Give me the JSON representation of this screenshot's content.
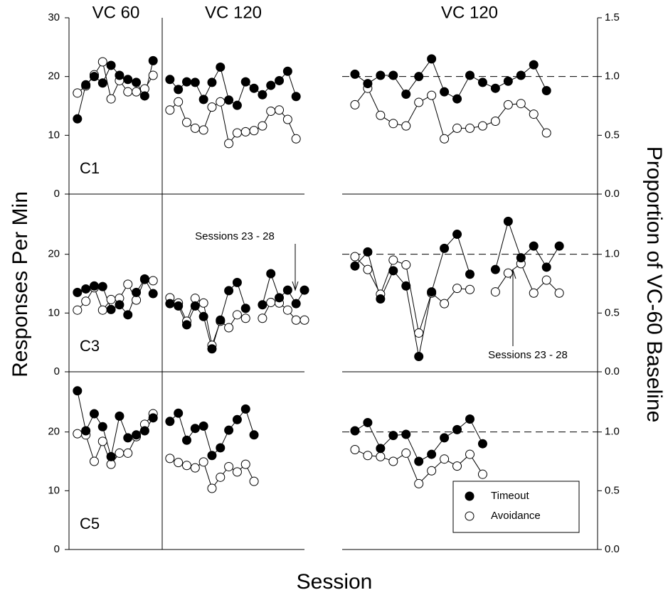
{
  "headers": [
    "VC 60",
    "VC 120",
    "VC 120"
  ],
  "ylabel": "Responses Per Min",
  "y2label": "Proportion of VC-60 Baseline",
  "xlabel": "Session",
  "legend": {
    "position": "lower right",
    "entries": [
      {
        "label": "Timeout",
        "marker": "filled"
      },
      {
        "label": "Avoidance",
        "marker": "open"
      }
    ]
  },
  "chart_data": [
    {
      "type": "line",
      "label": "C1",
      "axis_side": "left",
      "ylim": [
        0,
        30
      ],
      "yticks": [
        0,
        10,
        20,
        30
      ],
      "xlim": [
        0,
        28
      ],
      "x": [
        1,
        2,
        3,
        4,
        5,
        6,
        7,
        8,
        9,
        10,
        11,
        12,
        13,
        14,
        15,
        16,
        17,
        18,
        19,
        20,
        21,
        22,
        23,
        24,
        25,
        26,
        27
      ],
      "series": [
        {
          "marker": "filled",
          "values": [
            12.8,
            18.6,
            20.0,
            18.9,
            21.9,
            20.2,
            19.5,
            19.0,
            16.7,
            22.7,
            null,
            19.5,
            17.8,
            19.1,
            19.0,
            16.1,
            19.0,
            21.6,
            16.0,
            15.1,
            19.1,
            18.0,
            16.9,
            18.5,
            19.3,
            20.9,
            16.6
          ]
        },
        {
          "marker": "open",
          "values": [
            17.2,
            18.4,
            20.3,
            22.5,
            16.2,
            19.3,
            17.4,
            17.4,
            17.9,
            20.2,
            null,
            14.3,
            15.7,
            12.2,
            11.2,
            10.9,
            14.8,
            15.7,
            8.6,
            10.4,
            10.6,
            10.8,
            11.6,
            14.1,
            14.3,
            12.7,
            9.4
          ]
        }
      ]
    },
    {
      "type": "line",
      "axis_side": "right",
      "reference_line": 1,
      "ylim": [
        0,
        1.5
      ],
      "yticks": [
        {
          "value": 0,
          "label": "0.0"
        },
        {
          "value": 0.5,
          "label": "0.5"
        },
        {
          "value": 1,
          "label": "1.0"
        },
        {
          "value": 1.5,
          "label": "1.5"
        }
      ],
      "xlim": [
        0,
        20
      ],
      "x": [
        1,
        2,
        3,
        4,
        5,
        6,
        7,
        8,
        9,
        10,
        11,
        12,
        13,
        14,
        15,
        16
      ],
      "series": [
        {
          "marker": "filled",
          "values": [
            1.02,
            0.94,
            1.01,
            1.01,
            0.85,
            1.0,
            1.15,
            0.87,
            0.81,
            1.01,
            0.95,
            0.9,
            0.96,
            1.01,
            1.1,
            0.88
          ]
        },
        {
          "marker": "open",
          "values": [
            0.76,
            0.9,
            0.67,
            0.6,
            0.58,
            0.78,
            0.84,
            0.47,
            0.56,
            0.56,
            0.58,
            0.62,
            0.76,
            0.77,
            0.68,
            0.52
          ]
        }
      ]
    },
    {
      "type": "line",
      "label": "C3",
      "axis_side": "left",
      "annotation": "Sessions 23 - 28",
      "ylim": [
        0,
        30
      ],
      "yticks": [
        0,
        10,
        20
      ],
      "xlim": [
        0,
        28
      ],
      "x": [
        1,
        2,
        3,
        4,
        5,
        6,
        7,
        8,
        9,
        10,
        11,
        12,
        13,
        14,
        15,
        16,
        17,
        18,
        19,
        20,
        21,
        22,
        23,
        24,
        25,
        26,
        27,
        28
      ],
      "series": [
        {
          "marker": "filled",
          "values": [
            13.5,
            14.1,
            14.6,
            14.5,
            10.6,
            11.4,
            9.7,
            13.5,
            15.8,
            13.3,
            null,
            11.6,
            11.2,
            8.0,
            11.2,
            9.4,
            3.9,
            8.8,
            13.8,
            15.2,
            10.8,
            null,
            11.4,
            16.7,
            12.6,
            13.9,
            11.6,
            13.9
          ]
        },
        {
          "marker": "open",
          "values": [
            10.5,
            12.0,
            14.3,
            10.5,
            12.3,
            12.5,
            14.9,
            12.2,
            15.7,
            15.5,
            null,
            12.6,
            11.7,
            8.6,
            12.5,
            11.7,
            4.5,
            8.6,
            7.5,
            9.7,
            9.1,
            null,
            9.1,
            11.8,
            11.7,
            10.5,
            8.8,
            8.8
          ]
        }
      ]
    },
    {
      "type": "line",
      "axis_side": "right",
      "annotation": "Sessions 23 - 28",
      "reference_line": 1,
      "ylim": [
        0,
        1.5
      ],
      "yticks": [
        {
          "value": 0,
          "label": "0.0"
        },
        {
          "value": 0.5,
          "label": "0.5"
        },
        {
          "value": 1,
          "label": "1.0"
        }
      ],
      "xlim": [
        0,
        20
      ],
      "x": [
        1,
        2,
        3,
        4,
        5,
        6,
        7,
        8,
        9,
        10,
        11,
        12,
        13,
        14,
        15,
        16,
        17
      ],
      "series": [
        {
          "marker": "filled",
          "values": [
            0.9,
            1.02,
            0.62,
            0.86,
            0.73,
            0.13,
            0.68,
            1.05,
            1.17,
            0.83,
            null,
            0.87,
            1.28,
            0.97,
            1.07,
            0.89,
            1.07
          ]
        },
        {
          "marker": "open",
          "values": [
            0.98,
            0.87,
            0.66,
            0.95,
            0.91,
            0.33,
            0.67,
            0.58,
            0.71,
            0.7,
            null,
            0.68,
            0.84,
            0.92,
            0.67,
            0.78,
            0.67
          ]
        }
      ]
    },
    {
      "type": "line",
      "label": "C5",
      "axis_side": "left",
      "ylim": [
        0,
        30
      ],
      "yticks": [
        0,
        10,
        20
      ],
      "xlim": [
        0,
        28
      ],
      "x": [
        1,
        2,
        3,
        4,
        5,
        6,
        7,
        8,
        9,
        10,
        11,
        12,
        13,
        14,
        15,
        16,
        17,
        18,
        19,
        20,
        21,
        22
      ],
      "series": [
        {
          "marker": "filled",
          "values": [
            27.0,
            20.2,
            23.1,
            20.9,
            15.8,
            22.7,
            19.0,
            19.5,
            20.2,
            22.4,
            null,
            21.8,
            23.2,
            18.6,
            20.6,
            21.0,
            16.0,
            17.3,
            20.3,
            22.1,
            23.9,
            19.5
          ]
        },
        {
          "marker": "open",
          "values": [
            19.7,
            19.5,
            15.0,
            18.4,
            14.5,
            16.4,
            16.4,
            19.2,
            21.3,
            23.1,
            null,
            15.5,
            14.8,
            14.3,
            13.9,
            14.9,
            10.4,
            12.3,
            14.1,
            13.2,
            14.5,
            11.6
          ]
        }
      ]
    },
    {
      "type": "line",
      "axis_side": "right",
      "reference_line": 1,
      "ylim": [
        0,
        1.5
      ],
      "yticks": [
        {
          "value": 0,
          "label": "0.0"
        },
        {
          "value": 0.5,
          "label": "0.5"
        },
        {
          "value": 1,
          "label": "1.0"
        }
      ],
      "xlim": [
        0,
        20
      ],
      "x": [
        1,
        2,
        3,
        4,
        5,
        6,
        7,
        8,
        9,
        10,
        11
      ],
      "series": [
        {
          "marker": "filled",
          "values": [
            1.01,
            1.08,
            0.86,
            0.97,
            0.98,
            0.75,
            0.81,
            0.95,
            1.02,
            1.11,
            0.9
          ]
        },
        {
          "marker": "open",
          "values": [
            0.85,
            0.8,
            0.79,
            0.75,
            0.82,
            0.56,
            0.67,
            0.77,
            0.71,
            0.81,
            0.64
          ]
        }
      ]
    }
  ]
}
